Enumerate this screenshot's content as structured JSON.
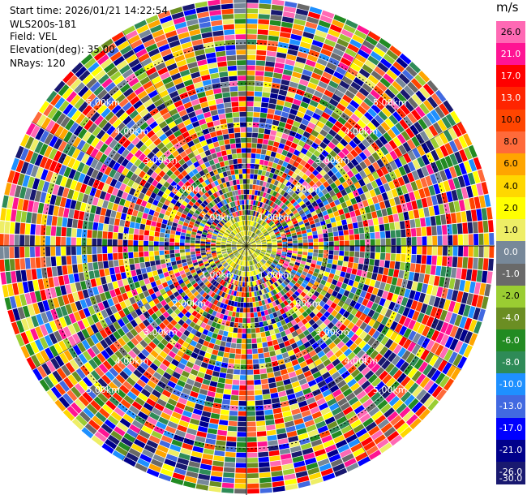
{
  "header": {
    "start_time": "Start time: 2026/01/21 14:22:54",
    "instrument": "WLS200s-181",
    "field": "Field: VEL",
    "elevation": "Elevation(deg): 35.00",
    "nrays": "NRays: 120"
  },
  "chart_data": {
    "type": "heatmap",
    "projection": "polar-ppi",
    "field": "VEL",
    "n_rays": 120,
    "range_rings": [
      "1.00km",
      "2.00km",
      "3.00km",
      "4.00km",
      "5.00km"
    ],
    "colorbar": {
      "unit": "m/s",
      "ticks": [
        "26.0",
        "21.0",
        "17.0",
        "13.0",
        "10.0",
        "8.0",
        "6.0",
        "4.0",
        "2.0",
        "1.0",
        "0.0",
        "-1.0",
        "-2.0",
        "-4.0",
        "-6.0",
        "-8.0",
        "-10.0",
        "-13.0",
        "-17.0",
        "-21.0",
        "-26.0",
        "-30.0"
      ],
      "colors": [
        "#ff69b4",
        "#ff1493",
        "#ff0000",
        "#ff2400",
        "#ff4500",
        "#ff6a3a",
        "#ffa500",
        "#ffd700",
        "#ffff00",
        "#eeee66",
        "#778899",
        "#696969",
        "#9acd32",
        "#6b8e23",
        "#228b22",
        "#2e8b57",
        "#1e90ff",
        "#4169e1",
        "#0000ff",
        "#00008b",
        "#191970",
        "#191970"
      ]
    }
  }
}
